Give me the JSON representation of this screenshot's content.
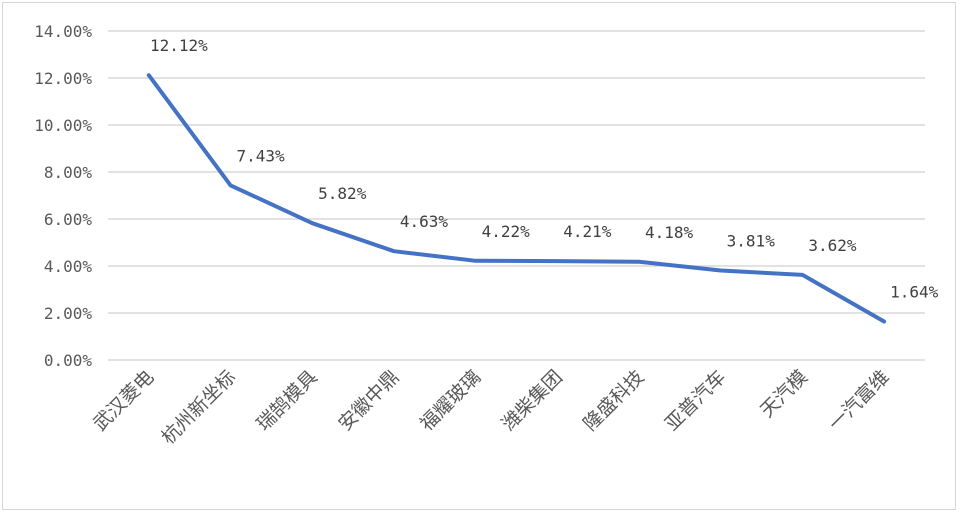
{
  "chart_data": {
    "type": "line",
    "title": "",
    "xlabel": "",
    "ylabel": "",
    "categories": [
      "武汉菱电",
      "杭州新坐标",
      "瑞鹄模具",
      "安徽中鼎",
      "福耀玻璃",
      "潍柴集团",
      "隆盛科技",
      "亚普汽车",
      "天汽模",
      "一汽富维"
    ],
    "values": [
      12.12,
      7.43,
      5.82,
      4.63,
      4.22,
      4.21,
      4.18,
      3.81,
      3.62,
      1.64
    ],
    "data_labels": [
      "12.12%",
      "7.43%",
      "5.82%",
      "4.63%",
      "4.22%",
      "4.21%",
      "4.18%",
      "3.81%",
      "3.62%",
      "1.64%"
    ],
    "y_ticks": [
      "0.00%",
      "2.00%",
      "4.00%",
      "6.00%",
      "8.00%",
      "10.00%",
      "12.00%",
      "14.00%"
    ],
    "ylim": [
      0,
      14
    ],
    "grid": true,
    "legend": "none",
    "line_color": "#4472C4",
    "grid_color": "#d9d9d9"
  }
}
